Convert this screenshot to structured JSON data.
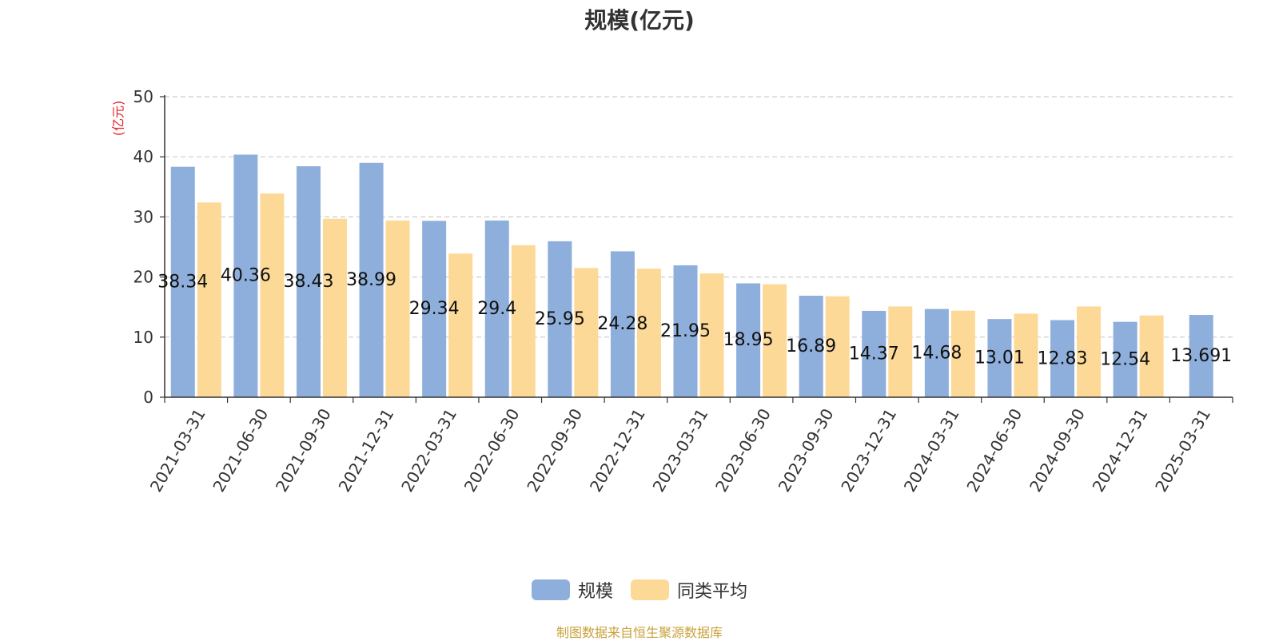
{
  "chart_data": {
    "type": "bar",
    "title": "规模(亿元)",
    "ylabel": "(亿元)",
    "ylim": [
      0,
      50
    ],
    "yticks": [
      0,
      10,
      20,
      30,
      40,
      50
    ],
    "grid": true,
    "legend_position": "bottom-center",
    "categories": [
      "2021-03-31",
      "2021-06-30",
      "2021-09-30",
      "2021-12-31",
      "2022-03-31",
      "2022-06-30",
      "2022-09-30",
      "2022-12-31",
      "2023-03-31",
      "2023-06-30",
      "2023-09-30",
      "2023-12-31",
      "2024-03-31",
      "2024-06-30",
      "2024-09-30",
      "2024-12-31",
      "2025-03-31"
    ],
    "series": [
      {
        "name": "规模",
        "color": "#8eaedb",
        "values": [
          38.34,
          40.36,
          38.43,
          38.99,
          29.34,
          29.4,
          25.95,
          24.28,
          21.95,
          18.95,
          16.89,
          14.37,
          14.68,
          13.01,
          12.83,
          12.54,
          13.691
        ],
        "labels": [
          "38.34",
          "40.36",
          "38.43",
          "38.99",
          "29.34",
          "29.4",
          "25.95",
          "24.28",
          "21.95",
          "18.95",
          "16.89",
          "14.37",
          "14.68",
          "13.01",
          "12.83",
          "12.54",
          "13.691"
        ]
      },
      {
        "name": "同类平均",
        "color": "#fdd998",
        "values": [
          32.4,
          33.9,
          29.7,
          29.4,
          23.9,
          25.3,
          21.5,
          21.4,
          20.6,
          18.8,
          16.8,
          15.1,
          14.4,
          13.9,
          15.1,
          13.6,
          null
        ]
      }
    ],
    "source_note": "制图数据来自恒生聚源数据库"
  }
}
